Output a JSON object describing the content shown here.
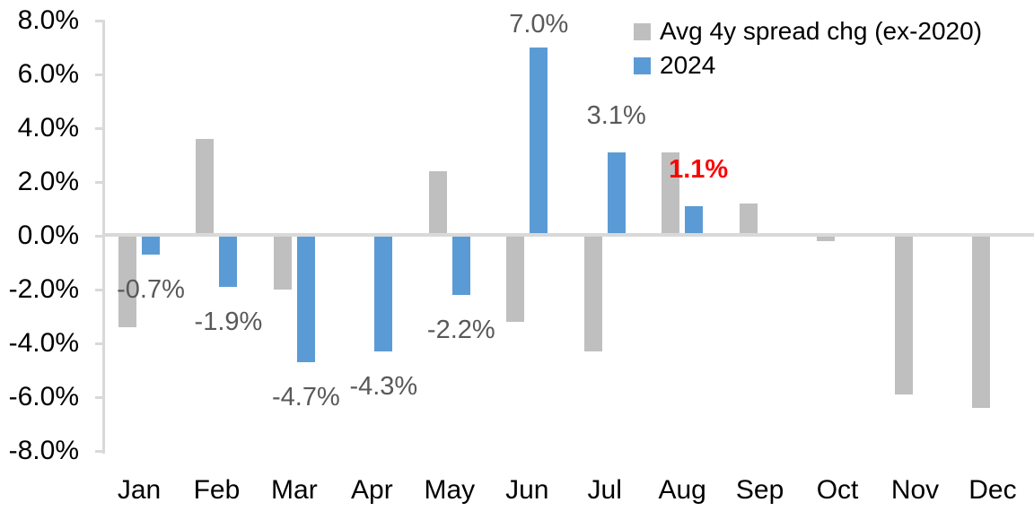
{
  "chart_data": {
    "type": "bar",
    "title": "",
    "categories": [
      "Jan",
      "Feb",
      "Mar",
      "Apr",
      "May",
      "Jun",
      "Jul",
      "Aug",
      "Sep",
      "Oct",
      "Nov",
      "Dec"
    ],
    "series": [
      {
        "name": "Avg 4y spread chg (ex-2020)",
        "color": "#BFBFBF",
        "values": [
          -3.4,
          3.6,
          -2.0,
          0.0,
          2.4,
          -3.2,
          -4.3,
          3.1,
          1.2,
          -0.2,
          -5.9,
          -6.4
        ]
      },
      {
        "name": "2024",
        "color": "#5B9BD5",
        "values": [
          -0.7,
          -1.9,
          -4.7,
          -4.3,
          -2.2,
          7.0,
          3.1,
          1.1,
          null,
          null,
          null,
          null
        ]
      }
    ],
    "y_axis": {
      "min": -8,
      "max": 8,
      "step": 2,
      "format": "0.0%",
      "tick_labels": [
        "8.0%",
        "6.0%",
        "4.0%",
        "2.0%",
        "0.0%",
        "-2.0%",
        "-4.0%",
        "-6.0%",
        "-8.0%"
      ]
    },
    "legend": {
      "position": "top-right",
      "entries": [
        "Avg 4y spread chg (ex-2020)",
        "2024"
      ]
    },
    "gridlines": false,
    "annotations": [
      {
        "month": "Jan",
        "series": "2024",
        "text": "-0.7%",
        "color": "#595959",
        "bold": false
      },
      {
        "month": "Feb",
        "series": "2024",
        "text": "-1.9%",
        "color": "#595959",
        "bold": false
      },
      {
        "month": "Mar",
        "series": "2024",
        "text": "-4.7%",
        "color": "#595959",
        "bold": false
      },
      {
        "month": "Apr",
        "series": "2024",
        "text": "-4.3%",
        "color": "#595959",
        "bold": false
      },
      {
        "month": "May",
        "series": "2024",
        "text": "-2.2%",
        "color": "#595959",
        "bold": false
      },
      {
        "month": "Jun",
        "series": "2024",
        "text": "7.0%",
        "color": "#595959",
        "bold": false
      },
      {
        "month": "Jul",
        "series": "2024",
        "text": "3.1%",
        "color": "#595959",
        "bold": false
      },
      {
        "month": "Aug",
        "series": "2024",
        "text": "1.1%",
        "color": "#FF0000",
        "bold": true
      }
    ],
    "colors": {
      "axis_line": "#D9D9D9",
      "bar_gray": "#BFBFBF",
      "bar_blue": "#5B9BD5",
      "data_label": "#595959",
      "highlight_label": "#FF0000",
      "axis_text": "#000000"
    }
  }
}
